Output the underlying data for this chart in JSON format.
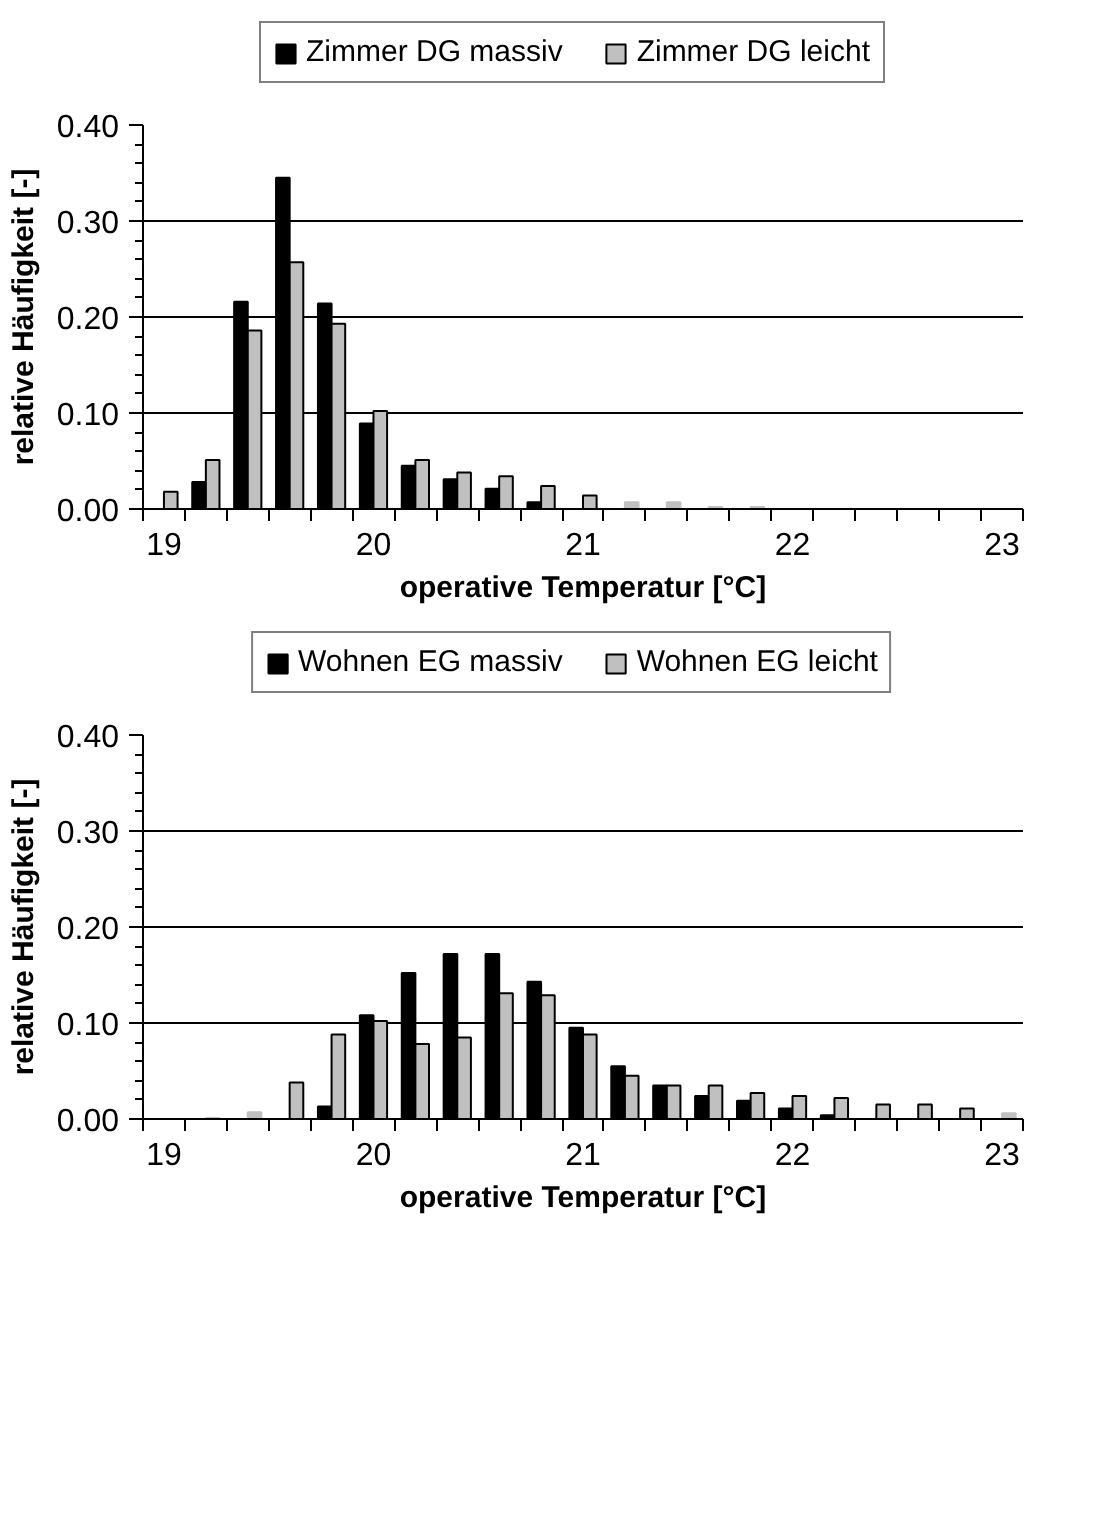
{
  "chart_data": [
    {
      "type": "bar",
      "xlabel": "operative Temperatur [°C]",
      "ylabel": "relative Häufigkeit [-]",
      "categories": [
        "19",
        null,
        null,
        null,
        null,
        "20",
        null,
        null,
        null,
        null,
        "21",
        null,
        null,
        null,
        null,
        "22",
        null,
        null,
        null,
        null,
        "23"
      ],
      "series": [
        {
          "name": "Zimmer DG massiv",
          "color": "#000000",
          "values": [
            0,
            0.028,
            0.216,
            0.345,
            0.214,
            0.089,
            0.045,
            0.031,
            0.021,
            0.007,
            0,
            0,
            0,
            0,
            0,
            0,
            0,
            0,
            0,
            0,
            0
          ]
        },
        {
          "name": "Zimmer DG leicht",
          "color": "#c0c0c0",
          "values": [
            0.018,
            0.051,
            0.186,
            0.257,
            0.193,
            0.102,
            0.051,
            0.038,
            0.034,
            0.024,
            0.014,
            0.007,
            0.007,
            0.002,
            0.002,
            0,
            0,
            0,
            0,
            0,
            0
          ]
        }
      ],
      "ylim": [
        0,
        0.4
      ],
      "yticks": [
        {
          "value": 0,
          "label": "0.00"
        },
        {
          "value": 0.1,
          "label": "0.10"
        },
        {
          "value": 0.2,
          "label": "0.20"
        },
        {
          "value": 0.3,
          "label": "0.30"
        },
        {
          "value": 0.4,
          "label": "0.40"
        }
      ],
      "grid": "y",
      "legend": "top"
    },
    {
      "type": "bar",
      "xlabel": "operative Temperatur [°C]",
      "ylabel": "relative Häufigkeit [-]",
      "categories": [
        "19",
        null,
        null,
        null,
        null,
        "20",
        null,
        null,
        null,
        null,
        "21",
        null,
        null,
        null,
        null,
        "22",
        null,
        null,
        null,
        null,
        "23"
      ],
      "series": [
        {
          "name": "Wohnen EG massiv",
          "color": "#000000",
          "values": [
            0,
            0,
            0,
            0,
            0.013,
            0.108,
            0.152,
            0.172,
            0.172,
            0.143,
            0.095,
            0.055,
            0.035,
            0.024,
            0.019,
            0.011,
            0.004,
            null,
            0,
            0,
            0
          ]
        },
        {
          "name": "Wohnen EG leicht",
          "color": "#c0c0c0",
          "values": [
            0,
            0.001,
            0.007,
            0.038,
            0.088,
            0.102,
            0.078,
            0.085,
            0.131,
            0.129,
            0.088,
            0.045,
            0.035,
            0.035,
            0.027,
            0.024,
            0.022,
            0.015,
            0.015,
            0.011,
            0.006
          ]
        }
      ],
      "ylim": [
        0,
        0.4
      ],
      "yticks": [
        {
          "value": 0,
          "label": "0.00"
        },
        {
          "value": 0.1,
          "label": "0.10"
        },
        {
          "value": 0.2,
          "label": "0.20"
        },
        {
          "value": 0.3,
          "label": "0.30"
        },
        {
          "value": 0.4,
          "label": "0.40"
        }
      ],
      "grid": "y",
      "legend": "top"
    }
  ]
}
